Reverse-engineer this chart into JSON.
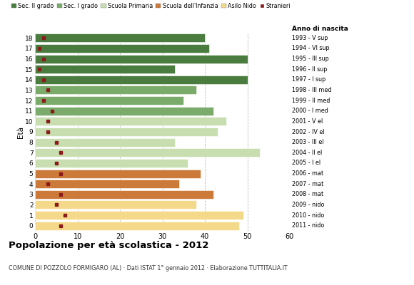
{
  "ages": [
    18,
    17,
    16,
    15,
    14,
    13,
    12,
    11,
    10,
    9,
    8,
    7,
    6,
    5,
    4,
    3,
    2,
    1,
    0
  ],
  "right_labels": [
    "1993 - V sup",
    "1994 - VI sup",
    "1995 - III sup",
    "1996 - II sup",
    "1997 - I sup",
    "1998 - III med",
    "1999 - II med",
    "2000 - I med",
    "2001 - V el",
    "2002 - IV el",
    "2003 - III el",
    "2004 - II el",
    "2005 - I el",
    "2006 - mat",
    "2007 - mat",
    "2008 - mat",
    "2009 - nido",
    "2010 - nido",
    "2011 - nido"
  ],
  "bar_values": [
    40,
    41,
    50,
    33,
    50,
    38,
    35,
    42,
    45,
    43,
    33,
    53,
    36,
    39,
    34,
    42,
    38,
    49,
    48
  ],
  "stranieri_values": [
    2,
    1,
    2,
    1,
    2,
    3,
    2,
    4,
    3,
    3,
    5,
    6,
    5,
    6,
    3,
    6,
    5,
    7,
    6
  ],
  "bar_colors": [
    "#4a7c3f",
    "#4a7c3f",
    "#4a7c3f",
    "#4a7c3f",
    "#4a7c3f",
    "#7aab6a",
    "#7aab6a",
    "#7aab6a",
    "#c8ddb0",
    "#c8ddb0",
    "#c8ddb0",
    "#c8ddb0",
    "#c8ddb0",
    "#cc7a3a",
    "#cc7a3a",
    "#cc7a3a",
    "#f5d98a",
    "#f5d98a",
    "#f5d98a"
  ],
  "stranieri_color": "#8b1a1a",
  "legend_labels": [
    "Sec. II grado",
    "Sec. I grado",
    "Scuola Primaria",
    "Scuola dell'Infanzia",
    "Asilo Nido",
    "Stranieri"
  ],
  "legend_colors": [
    "#4a7c3f",
    "#7aab6a",
    "#c8ddb0",
    "#cc7a3a",
    "#f5d98a",
    "#8b1a1a"
  ],
  "title": "Popolazione per età scolastica - 2012",
  "subtitle": "COMUNE DI POZZOLO FORMIGARO (AL) · Dati ISTAT 1° gennaio 2012 · Elaborazione TUTTITALIA.IT",
  "xlabel_eta": "Età",
  "xlabel_anno": "Anno di nascita",
  "xlim": [
    0,
    60
  ],
  "xticks": [
    0,
    10,
    20,
    30,
    40,
    50,
    60
  ],
  "background_color": "#ffffff",
  "grid_color": "#bbbbbb"
}
